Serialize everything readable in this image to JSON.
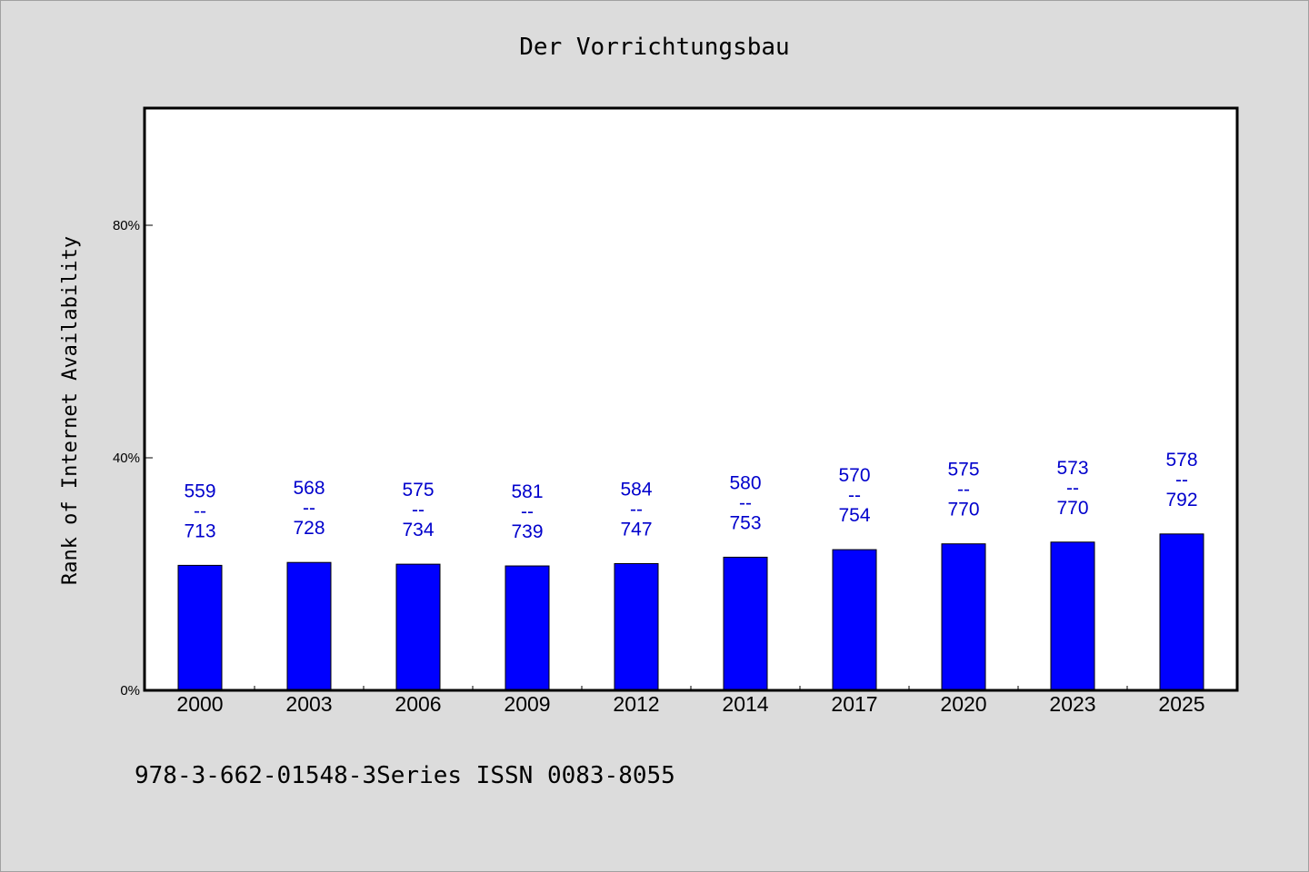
{
  "chart_data": {
    "type": "bar",
    "title": "Der Vorrichtungsbau",
    "xlabel": "",
    "ylabel": "Rank of Internet Availability",
    "ylim": [
      0,
      100
    ],
    "yticks": [
      0,
      40,
      80
    ],
    "ytick_labels": [
      "0%",
      "40%",
      "80%"
    ],
    "grid": false,
    "categories": [
      "2000",
      "2003",
      "2006",
      "2009",
      "2012",
      "2014",
      "2017",
      "2020",
      "2023",
      "2025"
    ],
    "values": [
      21.5,
      22.0,
      21.7,
      21.4,
      21.8,
      22.9,
      24.2,
      25.2,
      25.5,
      26.9
    ],
    "bar_labels": [
      {
        "top": "559",
        "mid": "--",
        "bottom": "713"
      },
      {
        "top": "568",
        "mid": "--",
        "bottom": "728"
      },
      {
        "top": "575",
        "mid": "--",
        "bottom": "734"
      },
      {
        "top": "581",
        "mid": "--",
        "bottom": "739"
      },
      {
        "top": "584",
        "mid": "--",
        "bottom": "747"
      },
      {
        "top": "580",
        "mid": "--",
        "bottom": "753"
      },
      {
        "top": "570",
        "mid": "--",
        "bottom": "754"
      },
      {
        "top": "575",
        "mid": "--",
        "bottom": "770"
      },
      {
        "top": "573",
        "mid": "--",
        "bottom": "770"
      },
      {
        "top": "578",
        "mid": "--",
        "bottom": "792"
      }
    ],
    "bar_color": "#0000ff",
    "label_color": "#0000cc"
  },
  "footer": {
    "text": "978-3-662-01548-3Series ISSN 0083-8055"
  }
}
